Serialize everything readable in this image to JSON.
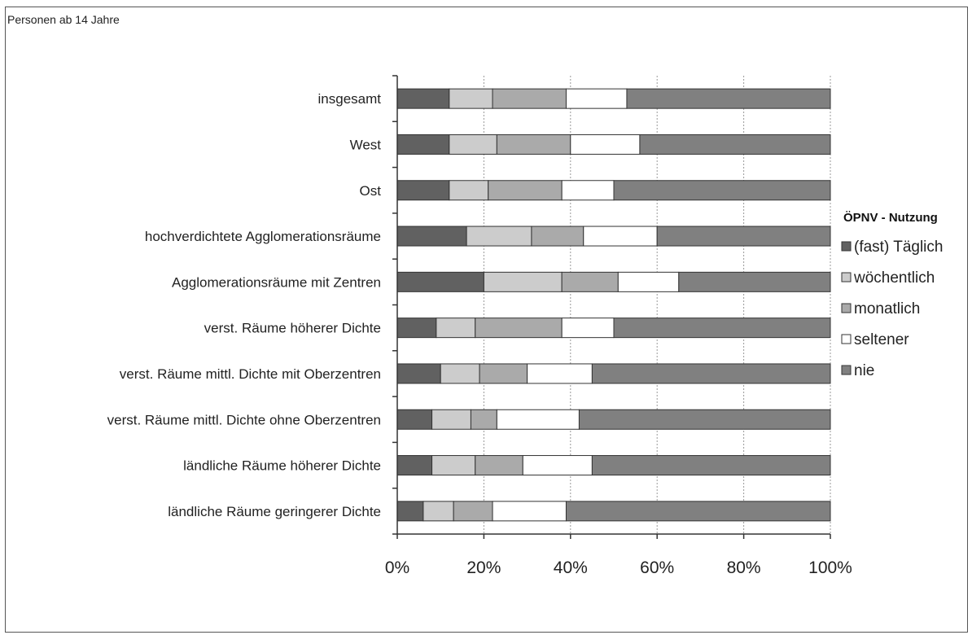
{
  "note": "Personen ab 14 Jahre",
  "chart_data": {
    "type": "bar",
    "orientation": "horizontal",
    "stacked": true,
    "normalized": true,
    "categories": [
      "insgesamt",
      "West",
      "Ost",
      "hochverdichtete Agglomerationsräume",
      "Agglomerationsräume mit Zentren",
      "verst. Räume höherer Dichte",
      "verst. Räume mittl. Dichte mit Oberzentren",
      "verst. Räume mittl. Dichte ohne Oberzentren",
      "ländliche Räume höherer Dichte",
      "ländliche Räume geringerer Dichte"
    ],
    "series": [
      {
        "name": "(fast) Täglich",
        "color": "#616161",
        "values": [
          12,
          12,
          12,
          16,
          20,
          9,
          10,
          8,
          8,
          6
        ]
      },
      {
        "name": "wöchentlich",
        "color": "#cccccc",
        "values": [
          10,
          11,
          9,
          15,
          18,
          9,
          9,
          9,
          10,
          7
        ]
      },
      {
        "name": "monatlich",
        "color": "#aaaaaa",
        "values": [
          17,
          17,
          17,
          12,
          13,
          20,
          11,
          6,
          11,
          9
        ]
      },
      {
        "name": "seltener",
        "color": "#ffffff",
        "values": [
          14,
          16,
          12,
          17,
          14,
          12,
          15,
          19,
          16,
          17
        ]
      },
      {
        "name": "nie",
        "color": "#808080",
        "values": [
          47,
          44,
          50,
          40,
          35,
          50,
          55,
          58,
          55,
          61
        ]
      }
    ],
    "xticks": [
      "0%",
      "20%",
      "40%",
      "60%",
      "80%",
      "100%"
    ],
    "xlim": [
      0,
      100
    ],
    "grid": "vertical dashed",
    "legend": {
      "title": "ÖPNV - Nutzung",
      "position": "right"
    }
  }
}
